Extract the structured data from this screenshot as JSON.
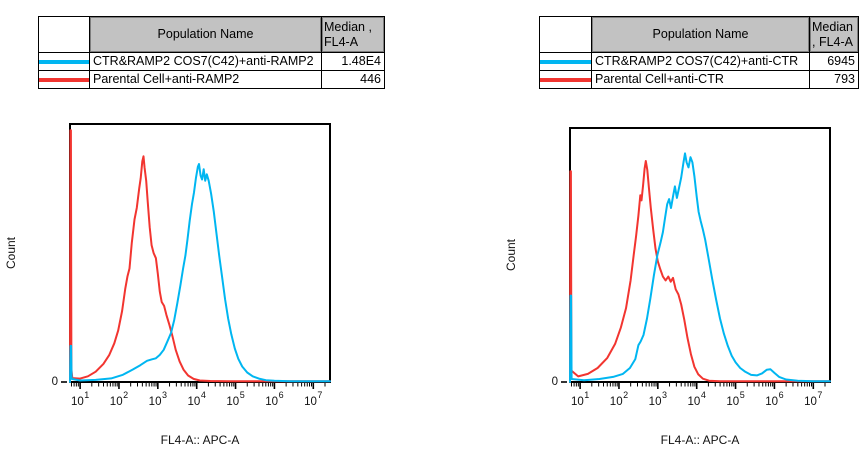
{
  "app": {
    "background": "#ffffff",
    "text_color": "#111111"
  },
  "panels": [
    {
      "id": "left",
      "table": {
        "corner_label": "",
        "population_header": "Population Name",
        "median_header_line1": "Median ,",
        "median_header_line2": "FL4-A",
        "rows": [
          {
            "swatch_color": "#00b6f1",
            "name": "CTR&RAMP2 COS7(C42)+anti-RAMP2",
            "median": "1.48E4"
          },
          {
            "swatch_color": "#f23530",
            "name": "Parental Cell+anti-RAMP2",
            "median": "446"
          }
        ]
      },
      "axes": {
        "xlabel": "FL4-A:: APC-A",
        "ylabel": "Count",
        "y_origin_label": "0"
      }
    },
    {
      "id": "right",
      "table": {
        "corner_label": "",
        "population_header": "Population Name",
        "median_header_line1": "Median",
        "median_header_line2": ", FL4-A",
        "rows": [
          {
            "swatch_color": "#00b6f1",
            "name": "CTR&RAMP2 COS7(C42)+anti-CTR",
            "median": "6945"
          },
          {
            "swatch_color": "#f23530",
            "name": "Parental Cell+anti-CTR",
            "median": "793"
          }
        ]
      },
      "axes": {
        "xlabel": "FL4-A:: APC-A",
        "ylabel": "Count",
        "y_origin_label": "0"
      }
    }
  ],
  "chart_data": [
    {
      "type": "line",
      "title": "",
      "xlabel": "FL4-A:: APC-A",
      "ylabel": "Count",
      "x_scale": "log10",
      "x_tick_decades": [
        1,
        2,
        3,
        4,
        5,
        6,
        7
      ],
      "x_range_decades": [
        0.74,
        7.43
      ],
      "y_axis_labels": [
        "0"
      ],
      "grid": false,
      "legend_position": "table-above",
      "series": [
        {
          "name": "Parental Cell+anti-RAMP2",
          "color": "#f23530",
          "median_fl4a": 446,
          "points_log10x_heightfrac": [
            [
              0.74,
              0.0
            ],
            [
              0.75,
              0.976
            ],
            [
              0.762,
              0.976
            ],
            [
              0.775,
              0.05
            ],
            [
              0.8,
              0.015
            ],
            [
              1.0,
              0.013
            ],
            [
              1.2,
              0.022
            ],
            [
              1.4,
              0.04
            ],
            [
              1.6,
              0.07
            ],
            [
              1.75,
              0.105
            ],
            [
              1.88,
              0.15
            ],
            [
              1.98,
              0.2
            ],
            [
              2.08,
              0.275
            ],
            [
              2.16,
              0.36
            ],
            [
              2.22,
              0.41
            ],
            [
              2.27,
              0.44
            ],
            [
              2.33,
              0.54
            ],
            [
              2.4,
              0.63
            ],
            [
              2.46,
              0.675
            ],
            [
              2.52,
              0.75
            ],
            [
              2.56,
              0.79
            ],
            [
              2.6,
              0.855
            ],
            [
              2.63,
              0.875
            ],
            [
              2.66,
              0.83
            ],
            [
              2.7,
              0.78
            ],
            [
              2.74,
              0.7
            ],
            [
              2.79,
              0.6
            ],
            [
              2.84,
              0.53
            ],
            [
              2.89,
              0.5
            ],
            [
              2.95,
              0.48
            ],
            [
              3.0,
              0.42
            ],
            [
              3.05,
              0.35
            ],
            [
              3.1,
              0.31
            ],
            [
              3.16,
              0.295
            ],
            [
              3.22,
              0.26
            ],
            [
              3.3,
              0.22
            ],
            [
              3.38,
              0.175
            ],
            [
              3.46,
              0.125
            ],
            [
              3.56,
              0.08
            ],
            [
              3.66,
              0.048
            ],
            [
              3.78,
              0.025
            ],
            [
              3.92,
              0.012
            ],
            [
              4.08,
              0.006
            ],
            [
              4.35,
              0.004
            ],
            [
              4.8,
              0.003
            ],
            [
              5.6,
              0.003
            ],
            [
              6.5,
              0.003
            ],
            [
              7.43,
              0.003
            ]
          ]
        },
        {
          "name": "CTR&RAMP2 COS7(C42)+anti-RAMP2",
          "color": "#00b6f1",
          "median_fl4a": 14800,
          "points_log10x_heightfrac": [
            [
              0.74,
              0.0
            ],
            [
              0.752,
              0.14
            ],
            [
              0.768,
              0.14
            ],
            [
              0.78,
              0.012
            ],
            [
              1.0,
              0.006
            ],
            [
              1.4,
              0.008
            ],
            [
              1.8,
              0.014
            ],
            [
              2.1,
              0.028
            ],
            [
              2.35,
              0.048
            ],
            [
              2.55,
              0.065
            ],
            [
              2.72,
              0.082
            ],
            [
              2.85,
              0.088
            ],
            [
              2.95,
              0.092
            ],
            [
              3.05,
              0.105
            ],
            [
              3.15,
              0.125
            ],
            [
              3.25,
              0.158
            ],
            [
              3.34,
              0.19
            ],
            [
              3.42,
              0.24
            ],
            [
              3.5,
              0.305
            ],
            [
              3.58,
              0.375
            ],
            [
              3.65,
              0.44
            ],
            [
              3.71,
              0.49
            ],
            [
              3.76,
              0.55
            ],
            [
              3.82,
              0.625
            ],
            [
              3.88,
              0.69
            ],
            [
              3.93,
              0.735
            ],
            [
              3.98,
              0.79
            ],
            [
              4.03,
              0.835
            ],
            [
              4.06,
              0.845
            ],
            [
              4.1,
              0.8
            ],
            [
              4.14,
              0.785
            ],
            [
              4.18,
              0.825
            ],
            [
              4.22,
              0.78
            ],
            [
              4.26,
              0.805
            ],
            [
              4.31,
              0.78
            ],
            [
              4.37,
              0.73
            ],
            [
              4.44,
              0.66
            ],
            [
              4.51,
              0.575
            ],
            [
              4.58,
              0.49
            ],
            [
              4.65,
              0.41
            ],
            [
              4.73,
              0.32
            ],
            [
              4.81,
              0.245
            ],
            [
              4.89,
              0.185
            ],
            [
              4.98,
              0.13
            ],
            [
              5.07,
              0.09
            ],
            [
              5.17,
              0.06
            ],
            [
              5.3,
              0.037
            ],
            [
              5.44,
              0.022
            ],
            [
              5.6,
              0.013
            ],
            [
              5.78,
              0.007
            ],
            [
              6.0,
              0.005
            ],
            [
              6.4,
              0.003
            ],
            [
              7.43,
              0.003
            ]
          ]
        }
      ]
    },
    {
      "type": "line",
      "title": "",
      "xlabel": "FL4-A:: APC-A",
      "ylabel": "Count",
      "x_scale": "log10",
      "x_tick_decades": [
        1,
        2,
        3,
        4,
        5,
        6,
        7
      ],
      "x_range_decades": [
        0.74,
        7.43
      ],
      "y_axis_labels": [
        "0"
      ],
      "grid": false,
      "legend_position": "table-above",
      "series": [
        {
          "name": "Parental Cell+anti-CTR",
          "color": "#f23530",
          "median_fl4a": 793,
          "points_log10x_heightfrac": [
            [
              0.74,
              0.0
            ],
            [
              0.75,
              0.83
            ],
            [
              0.762,
              0.83
            ],
            [
              0.775,
              0.045
            ],
            [
              0.95,
              0.022
            ],
            [
              1.2,
              0.032
            ],
            [
              1.45,
              0.055
            ],
            [
              1.7,
              0.095
            ],
            [
              1.9,
              0.15
            ],
            [
              2.05,
              0.215
            ],
            [
              2.18,
              0.29
            ],
            [
              2.3,
              0.4
            ],
            [
              2.38,
              0.5
            ],
            [
              2.44,
              0.575
            ],
            [
              2.5,
              0.655
            ],
            [
              2.55,
              0.735
            ],
            [
              2.58,
              0.715
            ],
            [
              2.62,
              0.775
            ],
            [
              2.66,
              0.84
            ],
            [
              2.69,
              0.87
            ],
            [
              2.73,
              0.835
            ],
            [
              2.77,
              0.765
            ],
            [
              2.82,
              0.685
            ],
            [
              2.88,
              0.6
            ],
            [
              2.94,
              0.525
            ],
            [
              3.0,
              0.475
            ],
            [
              3.06,
              0.445
            ],
            [
              3.13,
              0.415
            ],
            [
              3.2,
              0.4
            ],
            [
              3.27,
              0.415
            ],
            [
              3.33,
              0.395
            ],
            [
              3.39,
              0.41
            ],
            [
              3.46,
              0.365
            ],
            [
              3.53,
              0.345
            ],
            [
              3.6,
              0.305
            ],
            [
              3.68,
              0.245
            ],
            [
              3.76,
              0.175
            ],
            [
              3.85,
              0.11
            ],
            [
              3.94,
              0.06
            ],
            [
              4.04,
              0.03
            ],
            [
              4.16,
              0.013
            ],
            [
              4.32,
              0.005
            ],
            [
              4.6,
              0.003
            ],
            [
              5.2,
              0.003
            ],
            [
              6.2,
              0.003
            ],
            [
              7.43,
              0.003
            ]
          ]
        },
        {
          "name": "CTR&RAMP2 COS7(C42)+anti-CTR",
          "color": "#00b6f1",
          "median_fl4a": 6945,
          "points_log10x_heightfrac": [
            [
              0.74,
              0.0
            ],
            [
              0.752,
              0.34
            ],
            [
              0.768,
              0.34
            ],
            [
              0.78,
              0.012
            ],
            [
              1.1,
              0.007
            ],
            [
              1.5,
              0.012
            ],
            [
              1.85,
              0.02
            ],
            [
              2.1,
              0.032
            ],
            [
              2.28,
              0.055
            ],
            [
              2.42,
              0.09
            ],
            [
              2.5,
              0.145
            ],
            [
              2.56,
              0.16
            ],
            [
              2.63,
              0.185
            ],
            [
              2.72,
              0.25
            ],
            [
              2.81,
              0.33
            ],
            [
              2.9,
              0.42
            ],
            [
              2.99,
              0.5
            ],
            [
              3.07,
              0.55
            ],
            [
              3.13,
              0.59
            ],
            [
              3.19,
              0.65
            ],
            [
              3.24,
              0.7
            ],
            [
              3.29,
              0.72
            ],
            [
              3.34,
              0.685
            ],
            [
              3.39,
              0.73
            ],
            [
              3.44,
              0.77
            ],
            [
              3.49,
              0.725
            ],
            [
              3.54,
              0.76
            ],
            [
              3.6,
              0.805
            ],
            [
              3.66,
              0.865
            ],
            [
              3.7,
              0.9
            ],
            [
              3.74,
              0.865
            ],
            [
              3.79,
              0.845
            ],
            [
              3.84,
              0.885
            ],
            [
              3.89,
              0.865
            ],
            [
              3.94,
              0.81
            ],
            [
              4.0,
              0.73
            ],
            [
              4.05,
              0.67
            ],
            [
              4.1,
              0.635
            ],
            [
              4.16,
              0.6
            ],
            [
              4.22,
              0.56
            ],
            [
              4.3,
              0.49
            ],
            [
              4.4,
              0.405
            ],
            [
              4.5,
              0.325
            ],
            [
              4.6,
              0.25
            ],
            [
              4.7,
              0.19
            ],
            [
              4.8,
              0.142
            ],
            [
              4.9,
              0.103
            ],
            [
              5.0,
              0.077
            ],
            [
              5.12,
              0.055
            ],
            [
              5.25,
              0.04
            ],
            [
              5.4,
              0.028
            ],
            [
              5.55,
              0.026
            ],
            [
              5.68,
              0.034
            ],
            [
              5.8,
              0.048
            ],
            [
              5.9,
              0.05
            ],
            [
              6.0,
              0.036
            ],
            [
              6.12,
              0.02
            ],
            [
              6.3,
              0.01
            ],
            [
              6.6,
              0.005
            ],
            [
              7.0,
              0.003
            ],
            [
              7.43,
              0.003
            ]
          ]
        }
      ]
    }
  ]
}
